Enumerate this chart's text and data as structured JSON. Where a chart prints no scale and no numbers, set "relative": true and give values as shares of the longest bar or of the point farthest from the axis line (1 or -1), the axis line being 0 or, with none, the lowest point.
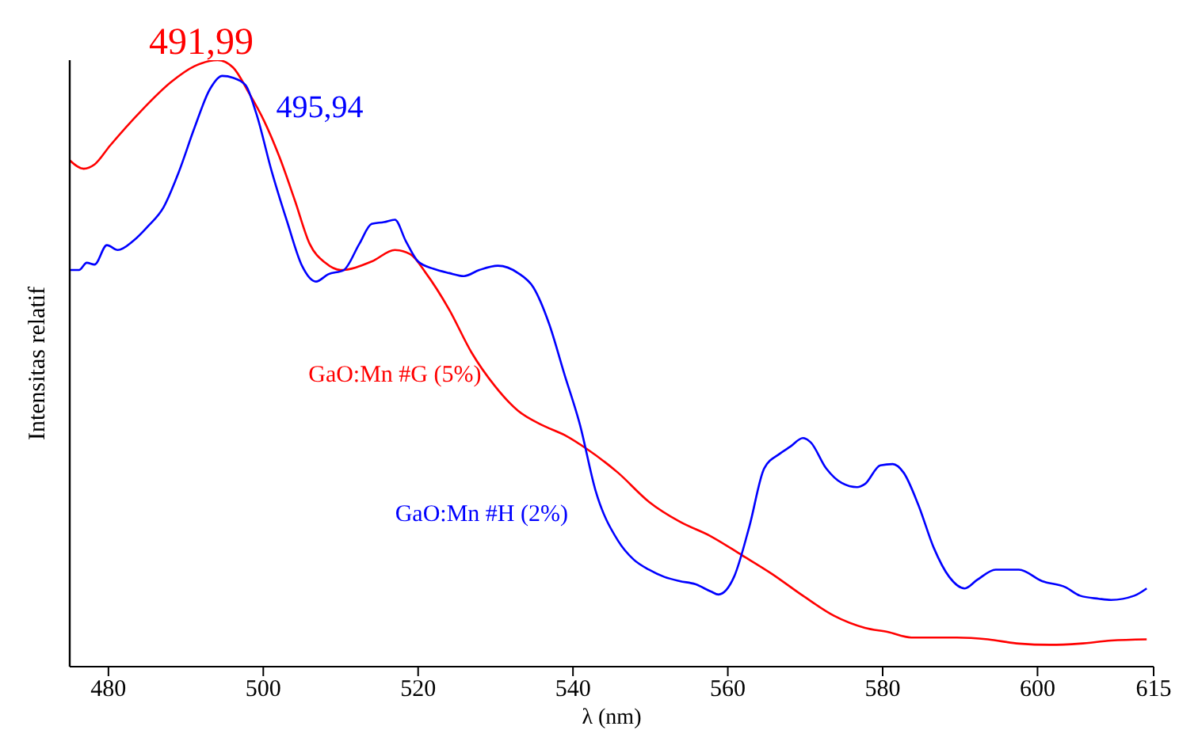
{
  "chart_data": {
    "type": "line",
    "xlabel": "λ (nm)",
    "ylabel": "Intensitas relatif",
    "relative": true,
    "xlim": [
      475,
      615
    ],
    "xticks": [
      480,
      500,
      520,
      540,
      560,
      580,
      600,
      615
    ],
    "legend": false,
    "grid": false,
    "marker": "none",
    "line_style": "solid",
    "annotations": [
      {
        "text": "491,99",
        "x": 491.99,
        "y": 1
      },
      {
        "text": "495,94",
        "x": 495.94,
        "y": 0.974
      }
    ],
    "series": [
      {
        "name": "GaO:Mn #G (5%)",
        "color": "#ff0000",
        "x": [
          475.0,
          476.8,
          478.2,
          480.2,
          484.2,
          488.1,
          491.1,
          494.1,
          496.1,
          498.1,
          500.1,
          502.1,
          504.1,
          506.0,
          508.0,
          510.0,
          514.0,
          517.0,
          519.0,
          521.0,
          524.0,
          526.9,
          529.9,
          532.9,
          535.9,
          538.9,
          541.9,
          545.8,
          549.8,
          553.8,
          557.8,
          561.8,
          565.7,
          569.7,
          573.7,
          577.7,
          580.7,
          583.7,
          589.6,
          593.6,
          597.6,
          601.6,
          605.5,
          609.5,
          614.1
        ],
        "values": [
          0.835,
          0.821,
          0.828,
          0.859,
          0.916,
          0.964,
          0.99,
          1,
          0.988,
          0.947,
          0.9,
          0.84,
          0.768,
          0.697,
          0.666,
          0.654,
          0.668,
          0.687,
          0.68,
          0.649,
          0.589,
          0.518,
          0.463,
          0.422,
          0.399,
          0.382,
          0.358,
          0.32,
          0.272,
          0.239,
          0.215,
          0.184,
          0.153,
          0.117,
          0.084,
          0.064,
          0.057,
          0.048,
          0.048,
          0.045,
          0.038,
          0.036,
          0.038,
          0.043,
          0.045
        ]
      },
      {
        "name": "GaO:Mn #H (2%)",
        "color": "#0000ff",
        "x": [
          475.0,
          476.2,
          477.2,
          478.2,
          479.8,
          481.2,
          483.2,
          485.1,
          487.1,
          489.1,
          491.1,
          493.1,
          494.7,
          496.1,
          497.7,
          499.1,
          501.1,
          503.1,
          505.0,
          506.8,
          508.4,
          510.4,
          512.4,
          514.0,
          515.6,
          517.0,
          518.4,
          520.0,
          522.0,
          524.0,
          525.9,
          527.9,
          530.3,
          532.9,
          534.9,
          536.9,
          538.9,
          540.9,
          542.9,
          545.8,
          547.8,
          549.8,
          551.8,
          553.8,
          555.8,
          557.8,
          558.8,
          560.8,
          562.8,
          564.7,
          566.7,
          568.1,
          569.7,
          570.7,
          572.7,
          574.7,
          576.7,
          577.7,
          579.7,
          581.3,
          582.7,
          584.6,
          586.6,
          588.6,
          590.6,
          592.2,
          594.6,
          597.6,
          600.6,
          603.6,
          605.5,
          607.9,
          609.5,
          612.5,
          614.1
        ],
        "values": [
          0.654,
          0.654,
          0.666,
          0.663,
          0.695,
          0.687,
          0.702,
          0.726,
          0.757,
          0.816,
          0.888,
          0.952,
          0.974,
          0.971,
          0.959,
          0.912,
          0.816,
          0.733,
          0.661,
          0.635,
          0.647,
          0.654,
          0.697,
          0.73,
          0.733,
          0.737,
          0.702,
          0.668,
          0.656,
          0.649,
          0.644,
          0.654,
          0.661,
          0.649,
          0.625,
          0.566,
          0.482,
          0.399,
          0.291,
          0.208,
          0.177,
          0.16,
          0.148,
          0.141,
          0.136,
          0.124,
          0.119,
          0.148,
          0.232,
          0.327,
          0.351,
          0.363,
          0.377,
          0.37,
          0.327,
          0.303,
          0.296,
          0.301,
          0.332,
          0.334,
          0.32,
          0.267,
          0.196,
          0.148,
          0.129,
          0.143,
          0.16,
          0.16,
          0.141,
          0.131,
          0.117,
          0.112,
          0.11,
          0.117,
          0.129
        ]
      }
    ]
  }
}
